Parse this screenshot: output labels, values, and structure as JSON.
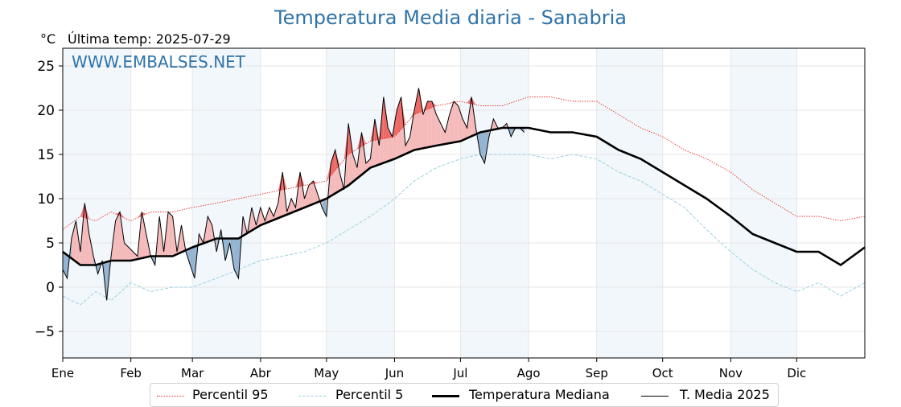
{
  "chart_data": {
    "type": "line",
    "title": "Temperatura Media diaria - Sanabria",
    "unit_label": "°C",
    "last_temp_label": "Última temp: 2025-07-29",
    "watermark": "WWW.EMBALSES.NET",
    "ylim": [
      -8,
      27
    ],
    "yticks": [
      25,
      20,
      15,
      10,
      5,
      0,
      -5
    ],
    "ytick_labels": [
      "25",
      "20",
      "15",
      "10",
      "5",
      "0",
      "−5"
    ],
    "x_range_days": [
      0,
      365
    ],
    "month_starts": [
      0,
      31,
      59,
      90,
      120,
      151,
      181,
      212,
      243,
      273,
      304,
      334
    ],
    "month_labels": [
      "Ene",
      "Feb",
      "Mar",
      "Abr",
      "May",
      "Jun",
      "Jul",
      "Ago",
      "Sep",
      "Oct",
      "Nov",
      "Dic"
    ],
    "grid": true,
    "legend_position": "bottom",
    "series": [
      {
        "name": "Percentil 95",
        "style": "dotted",
        "color": "#e8332e",
        "x": [
          0,
          8,
          15,
          22,
          31,
          40,
          50,
          59,
          70,
          80,
          90,
          100,
          110,
          120,
          130,
          140,
          151,
          160,
          170,
          181,
          190,
          200,
          212,
          222,
          232,
          243,
          253,
          263,
          273,
          283,
          293,
          304,
          314,
          324,
          334,
          344,
          354,
          365
        ],
        "y": [
          6.5,
          8,
          7.5,
          8.5,
          7.5,
          8.5,
          8.5,
          9,
          9.5,
          10,
          10.5,
          11,
          11.5,
          12,
          15,
          16.5,
          17,
          19.5,
          20.5,
          21,
          20.5,
          20.5,
          21.5,
          21.5,
          21,
          21,
          19.5,
          18,
          17,
          15.5,
          14.5,
          13,
          11,
          9.5,
          8,
          8,
          7.5,
          8
        ]
      },
      {
        "name": "Percentil 5",
        "style": "dashed",
        "color": "#9dcfe0",
        "x": [
          0,
          8,
          15,
          22,
          31,
          40,
          50,
          59,
          70,
          80,
          90,
          100,
          110,
          120,
          130,
          140,
          151,
          160,
          170,
          181,
          190,
          200,
          212,
          222,
          232,
          243,
          253,
          263,
          273,
          283,
          293,
          304,
          314,
          324,
          334,
          344,
          354,
          365
        ],
        "y": [
          -1,
          -2,
          -0.5,
          -1.5,
          0.5,
          -0.5,
          0,
          0,
          1,
          2,
          3,
          3.5,
          4,
          5,
          6.5,
          8,
          10,
          12,
          13.5,
          14.5,
          15,
          15,
          15,
          14.5,
          15,
          14.5,
          13,
          12,
          10.5,
          9,
          6.5,
          4,
          2,
          0.5,
          -0.5,
          0.5,
          -1,
          0.5
        ]
      },
      {
        "name": "Temperatura Mediana",
        "style": "solid-thick",
        "color": "#000000",
        "x": [
          0,
          8,
          15,
          22,
          31,
          40,
          50,
          59,
          70,
          80,
          90,
          100,
          110,
          120,
          130,
          140,
          151,
          160,
          170,
          181,
          190,
          200,
          212,
          222,
          232,
          243,
          253,
          263,
          273,
          283,
          293,
          304,
          314,
          324,
          334,
          344,
          354,
          365
        ],
        "y": [
          4,
          2.5,
          2.5,
          3,
          3,
          3.5,
          3.5,
          4.5,
          5.5,
          5.5,
          7,
          8,
          9,
          10,
          11.5,
          13.5,
          14.5,
          15.5,
          16,
          16.5,
          17.5,
          18,
          18,
          17.5,
          17.5,
          17,
          15.5,
          14.5,
          13,
          11.5,
          10,
          8,
          6,
          5,
          4,
          4,
          2.5,
          4.5
        ]
      },
      {
        "name": "T. Media 2025",
        "style": "solid-thin",
        "color": "#000000",
        "x": [
          0,
          2,
          4,
          6,
          8,
          10,
          12,
          14,
          16,
          18,
          20,
          22,
          24,
          26,
          28,
          30,
          32,
          34,
          36,
          38,
          40,
          42,
          44,
          46,
          48,
          50,
          52,
          54,
          56,
          58,
          60,
          62,
          64,
          66,
          68,
          70,
          72,
          74,
          76,
          78,
          80,
          82,
          84,
          86,
          88,
          90,
          92,
          94,
          96,
          98,
          100,
          102,
          104,
          106,
          108,
          110,
          112,
          114,
          116,
          118,
          120,
          122,
          124,
          126,
          128,
          130,
          132,
          134,
          136,
          138,
          140,
          142,
          144,
          146,
          148,
          150,
          152,
          154,
          156,
          158,
          160,
          162,
          164,
          166,
          168,
          170,
          172,
          174,
          176,
          178,
          180,
          182,
          184,
          186,
          188,
          190,
          192,
          194,
          196,
          198,
          200,
          202,
          204,
          206,
          208,
          210
        ],
        "y": [
          2,
          1,
          5.5,
          7.5,
          4,
          9.5,
          6,
          3.5,
          1.5,
          3,
          -1.5,
          3.5,
          7.5,
          8.5,
          5,
          4.5,
          4,
          3.5,
          8.5,
          6,
          3.5,
          2.5,
          8,
          4,
          8.5,
          8,
          4,
          7,
          4,
          2.5,
          1,
          6,
          5,
          8,
          7,
          4,
          6.5,
          3,
          5,
          2,
          1,
          8,
          6,
          9,
          7,
          9,
          7.5,
          9,
          8,
          9.5,
          13,
          8.5,
          10,
          9,
          13,
          10,
          11.5,
          12,
          10.5,
          9,
          8,
          14,
          15.5,
          13,
          11,
          18.5,
          15,
          13.5,
          17.5,
          14,
          14.5,
          19,
          16,
          21.5,
          18,
          17,
          20,
          21.5,
          16,
          17,
          20,
          22.5,
          19.5,
          21,
          21,
          19.5,
          18.5,
          17.5,
          19.5,
          21,
          20.5,
          19,
          18,
          21.5,
          18,
          15,
          14,
          17,
          19,
          18,
          18,
          18.5,
          17,
          18,
          18,
          17.5
        ]
      }
    ]
  },
  "legend": {
    "items": [
      {
        "label": "Percentil 95"
      },
      {
        "label": "Percentil 5"
      },
      {
        "label": "Temperatura Mediana"
      },
      {
        "label": "T. Media 2025"
      }
    ]
  }
}
